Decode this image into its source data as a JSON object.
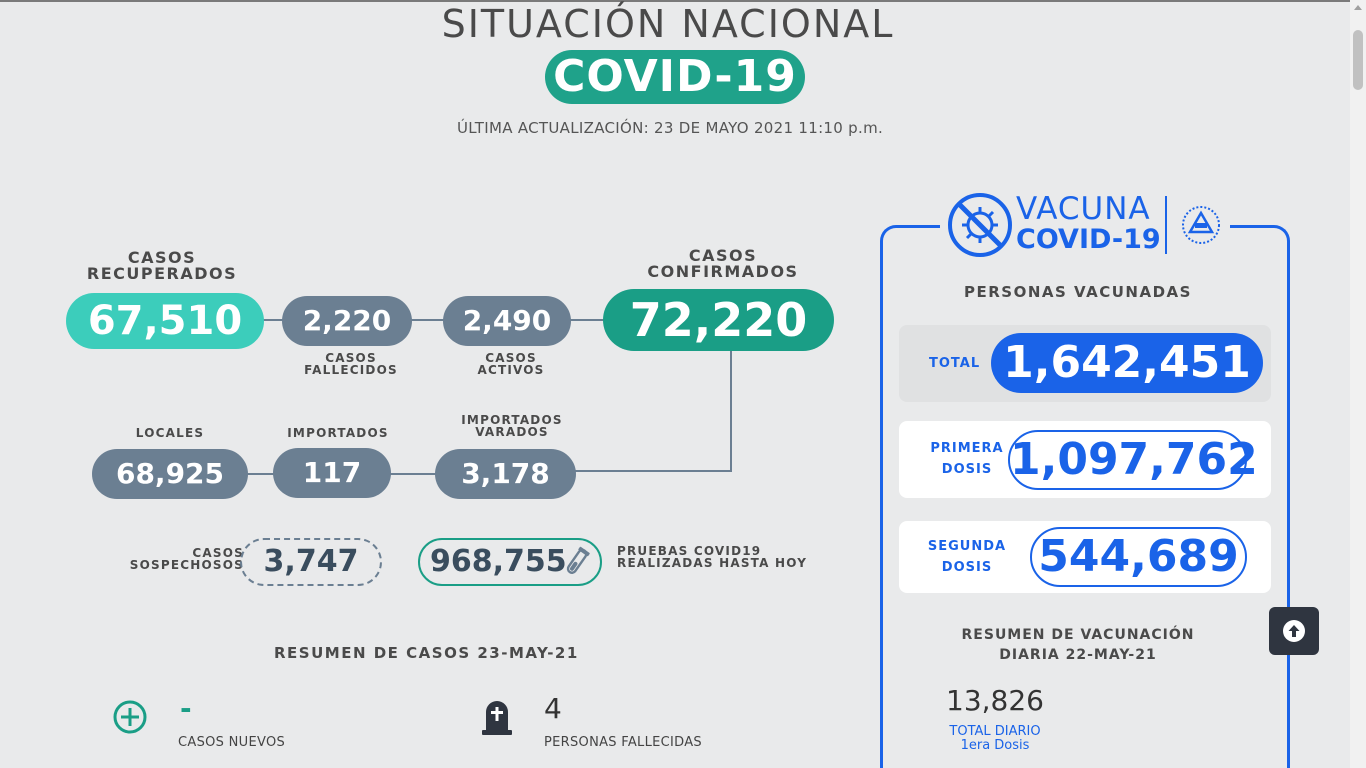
{
  "header": {
    "title": "SITUACIÓN NACIONAL",
    "badge": "COVID-19",
    "updated": "ÚLTIMA ACTUALIZACIÓN: 23 DE MAYO 2021 11:10 p.m."
  },
  "cases": {
    "recuperados_label_1": "CASOS",
    "recuperados_label_2": "RECUPERADOS",
    "recuperados": "67,510",
    "fallecidos": "2,220",
    "fallecidos_label_1": "CASOS",
    "fallecidos_label_2": "FALLECIDOS",
    "activos": "2,490",
    "activos_label_1": "CASOS",
    "activos_label_2": "ACTIVOS",
    "confirmados_label_1": "CASOS",
    "confirmados_label_2": "CONFIRMADOS",
    "confirmados": "72,220",
    "locales_label": "LOCALES",
    "locales": "68,925",
    "importados_label": "IMPORTADOS",
    "importados": "117",
    "varados_label_1": "IMPORTADOS",
    "varados_label_2": "VARADOS",
    "varados": "3,178",
    "sospechosos_label_1": "CASOS",
    "sospechosos_label_2": "SOSPECHOSOS",
    "sospechosos": "3,747",
    "pruebas": "968,755",
    "pruebas_label_1": "PRUEBAS COVID19",
    "pruebas_label_2": "REALIZADAS HASTA HOY"
  },
  "summary": {
    "title": "RESUMEN DE CASOS 23-MAY-21",
    "nuevos_value": "-",
    "nuevos_label": "CASOS NUEVOS",
    "fallecidas_value": "4",
    "fallecidas_label": "PERSONAS FALLECIDAS"
  },
  "vaccine": {
    "logo_line1": "VACUNA",
    "logo_line2": "COVID-19",
    "heading": "PERSONAS VACUNADAS",
    "total_label": "TOTAL",
    "total": "1,642,451",
    "primera_label_1": "PRIMERA",
    "primera_label_2": "DOSIS",
    "primera": "1,097,762",
    "segunda_label_1": "SEGUNDA",
    "segunda_label_2": "DOSIS",
    "segunda": "544,689",
    "resumen_1": "RESUMEN DE VACUNACIÓN",
    "resumen_2": "DIARIA 22-MAY-21",
    "daily_value": "13,826",
    "daily_label_1": "TOTAL DIARIO",
    "daily_label_2": "1era Dosis"
  },
  "colors": {
    "teal_dark": "#1a9e86",
    "teal_light": "#3ccdbb",
    "slate": "#6b7f92",
    "vaccine_blue": "#1a63e8"
  },
  "icons": [
    "plus-circle-icon",
    "tombstone-icon",
    "test-tube-icon",
    "virus-crossed-icon",
    "coat-of-arms-icon",
    "arrow-up-icon"
  ]
}
